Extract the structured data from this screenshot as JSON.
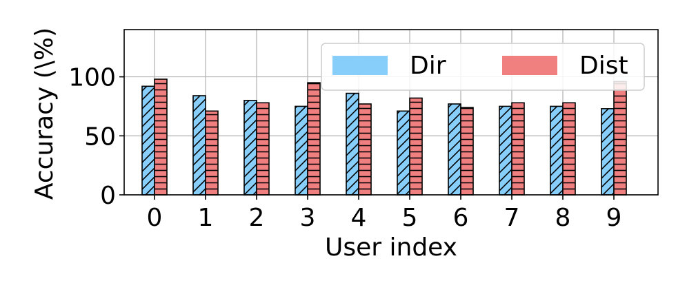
{
  "colors": {
    "dir": "#87CEFA",
    "dist": "#F08080",
    "grid": "#b0b0b0",
    "edge": "#000000",
    "legend_frame": "#cccccc"
  },
  "chart_data": {
    "type": "bar",
    "categories": [
      "0",
      "1",
      "2",
      "3",
      "4",
      "5",
      "6",
      "7",
      "8",
      "9"
    ],
    "series": [
      {
        "name": "Dir",
        "values": [
          92,
          84,
          80,
          75,
          86,
          71,
          77,
          75,
          75,
          73
        ],
        "hatch": "diagonal"
      },
      {
        "name": "Dist",
        "values": [
          98,
          71,
          78,
          95,
          77,
          82,
          74,
          78,
          78,
          96
        ],
        "hatch": "horizontal"
      }
    ],
    "xlabel": "User index",
    "ylabel": "Accuracy (\\%)",
    "ylim": [
      0,
      140
    ],
    "yticks": [
      "0",
      "50",
      "100"
    ],
    "grid": true,
    "legend": {
      "placement": "top-right",
      "columns": 2
    }
  }
}
